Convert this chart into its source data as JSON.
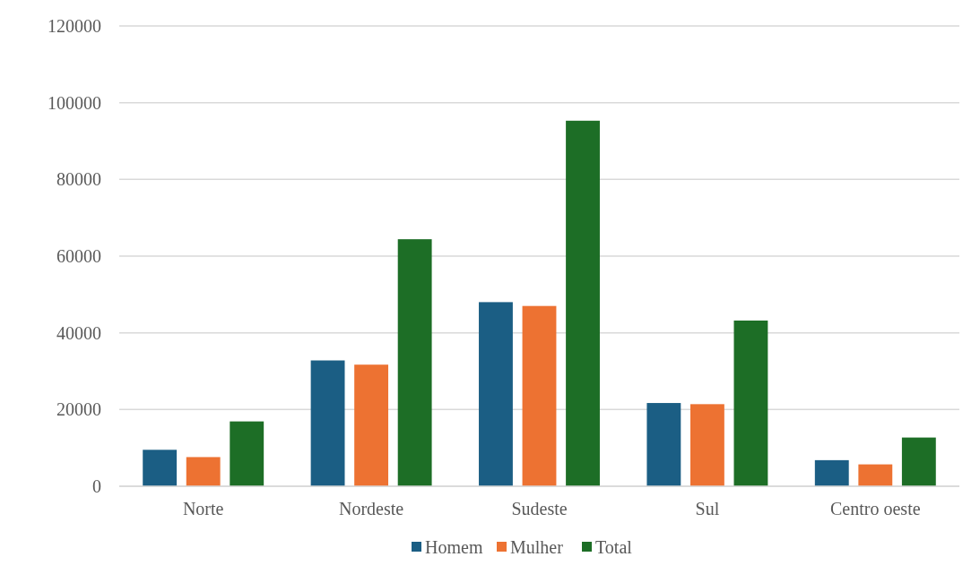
{
  "chart_data": {
    "type": "bar",
    "categories": [
      "Norte",
      "Nordeste",
      "Sudeste",
      "Sul",
      "Centro oeste"
    ],
    "series": [
      {
        "name": "Homem",
        "color": "#1b5e84",
        "values": [
          9500,
          32800,
          48000,
          21700,
          6800
        ]
      },
      {
        "name": "Mulher",
        "color": "#ed7232",
        "values": [
          7600,
          31700,
          47000,
          21400,
          5700
        ]
      },
      {
        "name": "Total",
        "color": "#1d6e26",
        "values": [
          16900,
          64400,
          95300,
          43200,
          12700
        ]
      }
    ],
    "ylim": [
      0,
      120000
    ],
    "yticks": [
      0,
      20000,
      40000,
      60000,
      80000,
      100000,
      120000
    ],
    "grid": "y",
    "legend": "bottom"
  }
}
